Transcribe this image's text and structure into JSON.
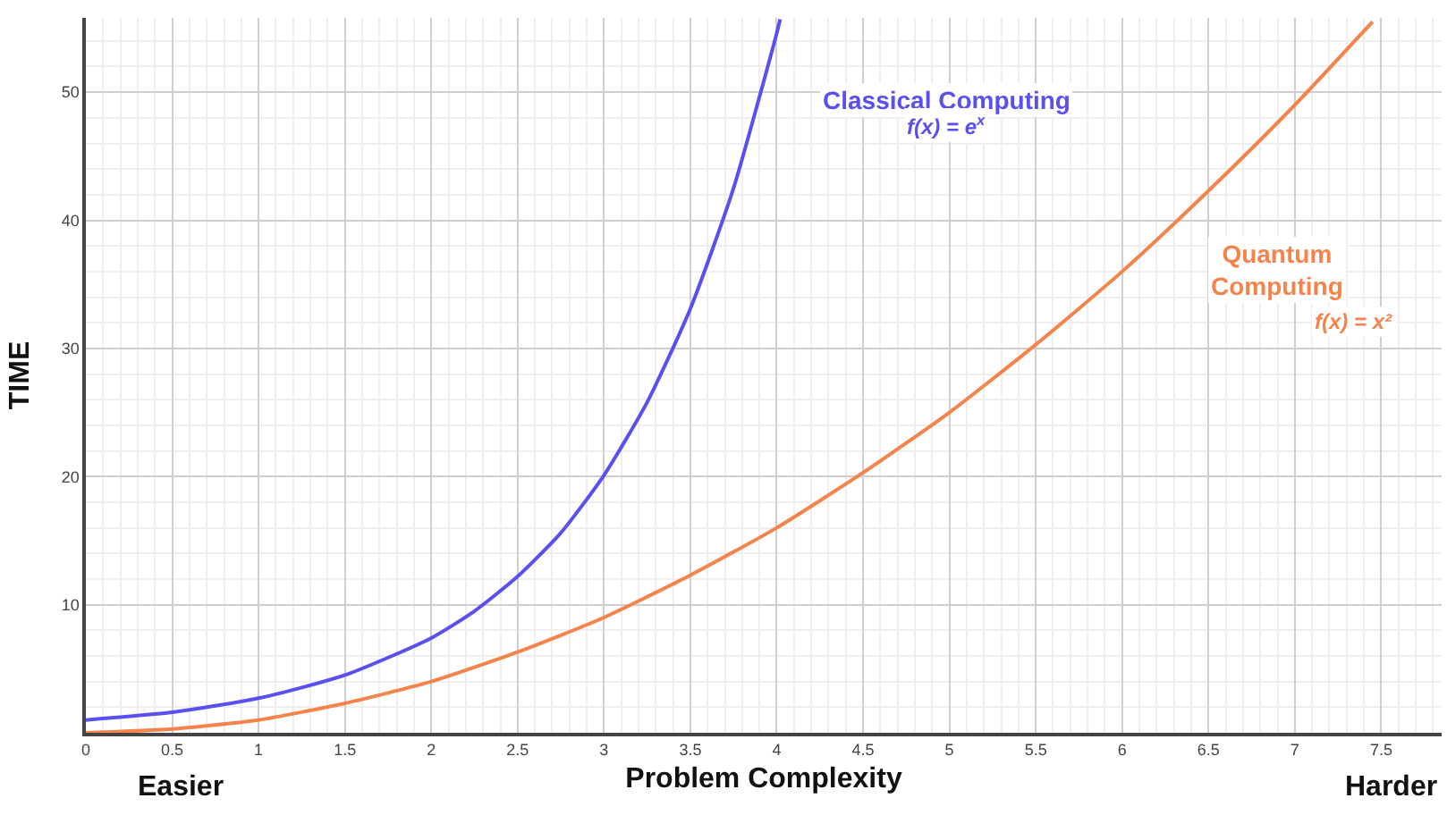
{
  "chart_data": {
    "type": "line",
    "xlabel": "Problem Complexity",
    "ylabel": "TIME",
    "xlim": [
      0,
      7.85
    ],
    "ylim": [
      0,
      55.8
    ],
    "xticks": [
      0,
      0.5,
      1,
      1.5,
      2,
      2.5,
      3,
      3.5,
      4,
      4.5,
      5,
      5.5,
      6,
      6.5,
      7,
      7.5
    ],
    "yticks": [
      10,
      20,
      30,
      40,
      50
    ],
    "grid": true,
    "legend": false,
    "marker": "none",
    "line_style": "solid",
    "series": [
      {
        "name": "Classical Computing",
        "color": "#5a4ff0",
        "x": [
          0,
          0.5,
          1,
          1.5,
          2,
          2.25,
          2.5,
          2.75,
          3,
          3.25,
          3.5,
          3.75,
          4,
          4.02
        ],
        "values": [
          1,
          1.6,
          2.7,
          4.5,
          7.4,
          9.5,
          12.2,
          15.6,
          20.1,
          25.8,
          33.1,
          42.5,
          54.6,
          55.7
        ]
      },
      {
        "name": "Quantum Computing",
        "color": "#f4844c",
        "x": [
          0,
          0.5,
          1,
          1.5,
          2,
          2.5,
          3,
          3.5,
          4,
          4.5,
          5,
          5.5,
          6,
          6.5,
          7,
          7.45
        ],
        "values": [
          0,
          0.3,
          1,
          2.3,
          4,
          6.3,
          9,
          12.3,
          16,
          20.3,
          25,
          30.3,
          36,
          42.3,
          49,
          55.5
        ]
      }
    ],
    "annotations": [
      "f(x) = e$^{x}$",
      "f(x) = x²",
      "Easier",
      "Harder"
    ]
  }
}
